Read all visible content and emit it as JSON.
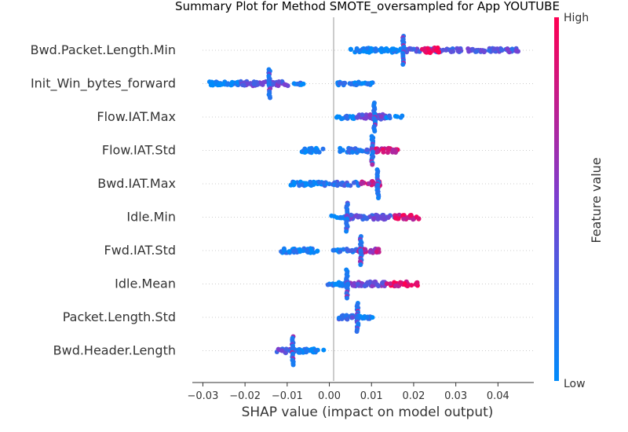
{
  "chart_data": {
    "type": "scatter",
    "title": "Summary Plot for Method SMOTE_oversampled for App YOUTUBE",
    "xlabel": "SHAP value (impact on model output)",
    "ylabel": "",
    "xlim": [
      -0.0325,
      0.0485
    ],
    "x_ticks": [
      -0.03,
      -0.02,
      -0.01,
      0.0,
      0.01,
      0.02,
      0.03,
      0.04
    ],
    "x_tick_labels": [
      "−0.03",
      "−0.02",
      "−0.01",
      "0.00",
      "0.01",
      "0.02",
      "0.03",
      "0.04"
    ],
    "grid": false,
    "colorbar": {
      "label": "Feature value",
      "high_label": "High",
      "low_label": "Low",
      "high_color": "#ff0052",
      "mid_color": "#7b3fd0",
      "low_color": "#008bfb"
    },
    "features": [
      {
        "name": "Bwd.Packet.Length.Min",
        "segments": [
          {
            "from": 0.005,
            "to": 0.0175,
            "color": 0.0,
            "density": 0.6,
            "spread": 0.35
          },
          {
            "from": 0.0175,
            "to": 0.045,
            "color": 0.35,
            "density": 0.5,
            "spread": 0.3
          },
          {
            "from": 0.022,
            "to": 0.026,
            "color": 0.9,
            "density": 0.5,
            "spread": 0.4
          }
        ],
        "spikes": [
          {
            "x": 0.0175,
            "height": 1.0
          }
        ]
      },
      {
        "name": "Init_Win_bytes_forward",
        "segments": [
          {
            "from": -0.0285,
            "to": -0.021,
            "color": 0.05,
            "density": 0.6,
            "spread": 0.3
          },
          {
            "from": -0.021,
            "to": -0.0095,
            "color": 0.4,
            "density": 0.5,
            "spread": 0.35
          },
          {
            "from": -0.0095,
            "to": -0.006,
            "color": 0.1,
            "density": 0.3,
            "spread": 0.2
          },
          {
            "from": 0.0015,
            "to": 0.0105,
            "color": 0.1,
            "density": 0.4,
            "spread": 0.25
          }
        ],
        "spikes": [
          {
            "x": -0.0142,
            "height": 1.0
          }
        ]
      },
      {
        "name": "Flow.IAT.Max",
        "segments": [
          {
            "from": 0.0015,
            "to": 0.0065,
            "color": 0.05,
            "density": 0.4,
            "spread": 0.3
          },
          {
            "from": 0.0065,
            "to": 0.0135,
            "color": 0.45,
            "density": 0.5,
            "spread": 0.4
          },
          {
            "from": 0.0135,
            "to": 0.0175,
            "color": 0.05,
            "density": 0.3,
            "spread": 0.2
          }
        ],
        "spikes": [
          {
            "x": 0.0107,
            "height": 1.0
          }
        ]
      },
      {
        "name": "Flow.IAT.Std",
        "segments": [
          {
            "from": -0.0068,
            "to": -0.0015,
            "color": 0.05,
            "density": 0.5,
            "spread": 0.35
          },
          {
            "from": 0.0025,
            "to": 0.0105,
            "color": 0.15,
            "density": 0.5,
            "spread": 0.35
          },
          {
            "from": 0.0105,
            "to": 0.0165,
            "color": 0.85,
            "density": 0.5,
            "spread": 0.35
          }
        ],
        "spikes": [
          {
            "x": 0.0102,
            "height": 1.0
          }
        ]
      },
      {
        "name": "Bwd.IAT.Max",
        "segments": [
          {
            "from": -0.0095,
            "to": -0.0015,
            "color": 0.05,
            "density": 0.5,
            "spread": 0.3
          },
          {
            "from": -0.0015,
            "to": 0.0075,
            "color": 0.2,
            "density": 0.4,
            "spread": 0.3
          },
          {
            "from": 0.0075,
            "to": 0.0125,
            "color": 0.75,
            "density": 0.5,
            "spread": 0.4
          }
        ],
        "spikes": [
          {
            "x": 0.0115,
            "height": 1.0
          }
        ]
      },
      {
        "name": "Idle.Min",
        "segments": [
          {
            "from": 0.0005,
            "to": 0.0045,
            "color": 0.05,
            "density": 0.4,
            "spread": 0.3
          },
          {
            "from": 0.0045,
            "to": 0.0155,
            "color": 0.35,
            "density": 0.5,
            "spread": 0.35
          },
          {
            "from": 0.0155,
            "to": 0.0215,
            "color": 0.85,
            "density": 0.5,
            "spread": 0.35
          }
        ],
        "spikes": [
          {
            "x": 0.0042,
            "height": 1.0
          }
        ]
      },
      {
        "name": "Fwd.IAT.Std",
        "segments": [
          {
            "from": -0.0115,
            "to": -0.0025,
            "color": 0.05,
            "density": 0.5,
            "spread": 0.35
          },
          {
            "from": 0.0005,
            "to": 0.0065,
            "color": 0.1,
            "density": 0.4,
            "spread": 0.25
          },
          {
            "from": 0.0065,
            "to": 0.012,
            "color": 0.7,
            "density": 0.5,
            "spread": 0.35
          }
        ],
        "spikes": [
          {
            "x": 0.0075,
            "height": 1.0
          }
        ]
      },
      {
        "name": "Idle.Mean",
        "segments": [
          {
            "from": -0.0005,
            "to": 0.0045,
            "color": 0.05,
            "density": 0.5,
            "spread": 0.3
          },
          {
            "from": 0.0045,
            "to": 0.0135,
            "color": 0.45,
            "density": 0.5,
            "spread": 0.35
          },
          {
            "from": 0.0135,
            "to": 0.021,
            "color": 0.9,
            "density": 0.5,
            "spread": 0.35
          }
        ],
        "spikes": [
          {
            "x": 0.0042,
            "height": 1.0
          }
        ]
      },
      {
        "name": "Packet.Length.Std",
        "segments": [
          {
            "from": 0.0015,
            "to": 0.0065,
            "color": 0.25,
            "density": 0.5,
            "spread": 0.35
          },
          {
            "from": 0.0065,
            "to": 0.0105,
            "color": 0.1,
            "density": 0.4,
            "spread": 0.25
          }
        ],
        "spikes": [
          {
            "x": 0.0067,
            "height": 1.0
          }
        ]
      },
      {
        "name": "Bwd.Header.Length",
        "segments": [
          {
            "from": -0.0125,
            "to": -0.0085,
            "color": 0.35,
            "density": 0.5,
            "spread": 0.35
          },
          {
            "from": -0.0085,
            "to": -0.0005,
            "color": 0.05,
            "density": 0.5,
            "spread": 0.3
          }
        ],
        "spikes": [
          {
            "x": -0.0087,
            "height": 1.0
          }
        ]
      }
    ]
  }
}
